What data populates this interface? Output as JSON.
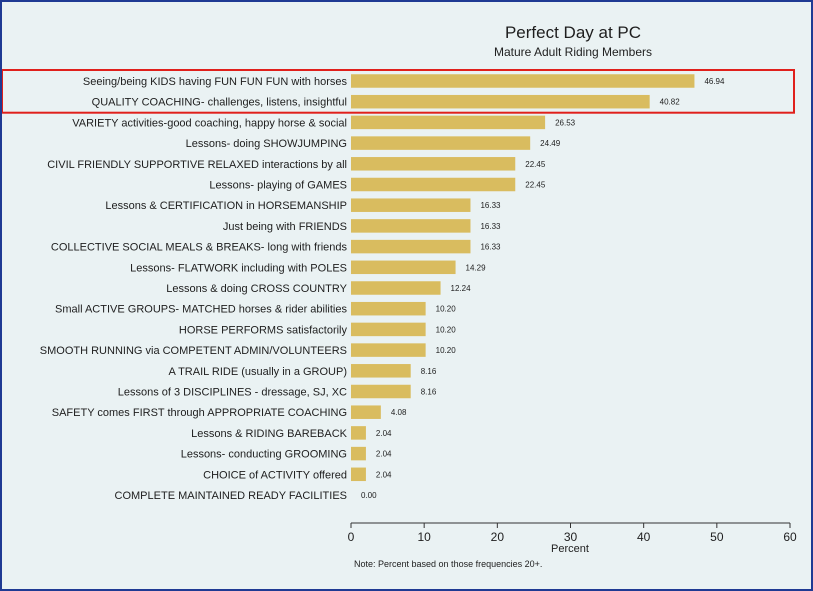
{
  "chart_data": {
    "type": "bar",
    "orientation": "horizontal",
    "title": "Perfect Day at PC",
    "subtitle": "Mature Adult Riding Members",
    "xlabel": "Percent",
    "note": "Note: Percent based on those frequencies 20+.",
    "xlim": [
      0,
      60
    ],
    "xticks": [
      "0",
      "10",
      "20",
      "30",
      "40",
      "50",
      "60"
    ],
    "grid": false,
    "bar_color": "#d9bc5f",
    "highlight_color": "#e0201b",
    "highlighted_categories": [
      0,
      1
    ],
    "categories": [
      "Seeing/being KIDS having FUN FUN FUN with horses",
      "QUALITY COACHING- challenges, listens, insightful",
      "VARIETY activities-good coaching, happy horse & social",
      "Lessons- doing SHOWJUMPING",
      "CIVIL FRIENDLY SUPPORTIVE RELAXED interactions by all",
      "Lessons- playing of GAMES",
      "Lessons & CERTIFICATION in HORSEMANSHIP",
      "Just being with FRIENDS",
      "COLLECTIVE SOCIAL MEALS & BREAKS- long with friends",
      "Lessons- FLATWORK including with POLES",
      "Lessons & doing CROSS COUNTRY",
      "Small ACTIVE GROUPS- MATCHED horses & rider abilities",
      "HORSE PERFORMS satisfactorily",
      "SMOOTH RUNNING via COMPETENT ADMIN/VOLUNTEERS",
      "A TRAIL RIDE (usually in a GROUP)",
      "Lessons of 3 DISCIPLINES - dressage, SJ, XC",
      "SAFETY comes FIRST through APPROPRIATE COACHING",
      "Lessons & RIDING BAREBACK",
      "Lessons- conducting GROOMING",
      "CHOICE of ACTIVITY offered",
      "COMPLETE MAINTAINED READY FACILITIES"
    ],
    "values": [
      46.94,
      40.82,
      26.53,
      24.49,
      22.45,
      22.45,
      16.33,
      16.33,
      16.33,
      14.29,
      12.24,
      10.2,
      10.2,
      10.2,
      8.16,
      8.16,
      4.08,
      2.04,
      2.04,
      2.04,
      0.0
    ],
    "value_labels": [
      "46.94",
      "40.82",
      "26.53",
      "24.49",
      "22.45",
      "22.45",
      "16.33",
      "16.33",
      "16.33",
      "14.29",
      "12.24",
      "10.20",
      "10.20",
      "10.20",
      "8.16",
      "8.16",
      "4.08",
      "2.04",
      "2.04",
      "2.04",
      "0.00"
    ]
  }
}
